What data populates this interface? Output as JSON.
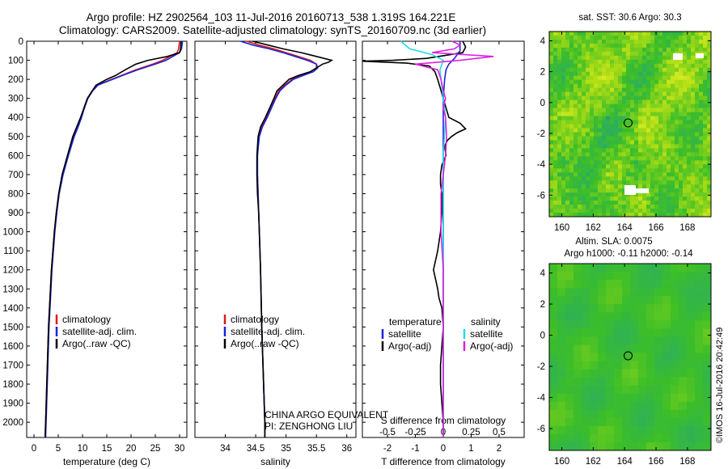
{
  "title": {
    "line1": "Argo profile: HZ 2902564_103 11-Jul-2016 20160713_538 1.319S 164.221E",
    "line2": "Climatology: CARS2009. Satellite-adjusted climatology: synTS_20160709.nc (3d earlier)"
  },
  "depth_ticks": [
    "0",
    "100",
    "200",
    "300",
    "400",
    "500",
    "600",
    "700",
    "800",
    "900",
    "1000",
    "1100",
    "1200",
    "1300",
    "1400",
    "1500",
    "1600",
    "1700",
    "1800",
    "1900",
    "2000"
  ],
  "colors": {
    "climatology": "#e01818",
    "satellite": "#1a24d8",
    "argo": "#000000",
    "salinity_sat": "#22dde8",
    "salinity_argo": "#e020e0"
  },
  "chart_data": [
    {
      "type": "line",
      "id": "temperature",
      "xlabel": "temperature (deg C)",
      "ylabel": "depth",
      "xlim": [
        -1.5,
        31.5
      ],
      "ylim": [
        0,
        2080
      ],
      "xticks": [
        "0",
        "5",
        "10",
        "15",
        "20",
        "25",
        "30"
      ],
      "legend": {
        "position": "lower-left",
        "items": [
          "climatology",
          "satellite-adj. clim.",
          "Argo(..raw -QC)"
        ]
      },
      "series": [
        {
          "name": "climatology",
          "color": "#e01818",
          "depth": [
            0,
            40,
            60,
            80,
            100,
            120,
            150,
            180,
            200,
            230,
            260,
            300,
            350,
            400,
            450,
            500,
            600,
            700,
            800,
            900,
            1000,
            1200,
            1500,
            2000,
            2080
          ],
          "values": [
            30.0,
            29.8,
            29.5,
            28.0,
            26.5,
            24.5,
            21.0,
            18.0,
            16.0,
            13.0,
            12.0,
            11.0,
            10.3,
            9.7,
            9.0,
            8.2,
            7.0,
            5.9,
            5.1,
            4.6,
            4.2,
            3.6,
            3.0,
            2.4,
            2.3
          ]
        },
        {
          "name": "satellite-adj. clim.",
          "color": "#1a24d8",
          "depth": [
            0,
            40,
            60,
            80,
            100,
            120,
            150,
            180,
            200,
            230,
            260,
            300,
            350,
            400,
            450,
            500,
            600,
            700,
            800,
            900,
            1000,
            1200,
            1500,
            2000,
            2080
          ],
          "values": [
            30.6,
            30.4,
            30.0,
            28.6,
            27.2,
            25.0,
            21.4,
            18.2,
            16.2,
            13.2,
            12.1,
            11.1,
            10.4,
            9.8,
            9.1,
            8.3,
            7.1,
            6.0,
            5.2,
            4.7,
            4.3,
            3.7,
            3.1,
            2.5,
            2.4
          ]
        },
        {
          "name": "Argo(..raw -QC)",
          "color": "#000000",
          "depth": [
            0,
            40,
            60,
            80,
            100,
            120,
            150,
            180,
            200,
            230,
            260,
            300,
            350,
            400,
            450,
            500,
            600,
            700,
            800,
            900,
            1000,
            1200,
            1500,
            2000,
            2080
          ],
          "values": [
            30.3,
            30.2,
            30.0,
            27.5,
            23.5,
            21.0,
            18.8,
            16.8,
            15.0,
            12.8,
            12.0,
            11.0,
            10.3,
            9.6,
            8.8,
            8.0,
            6.9,
            5.8,
            5.1,
            4.6,
            4.2,
            3.6,
            3.0,
            2.4,
            2.3
          ]
        }
      ]
    },
    {
      "type": "line",
      "id": "salinity",
      "xlabel": "salinity",
      "ylabel": "depth",
      "xlim": [
        33.5,
        36.15
      ],
      "ylim": [
        0,
        2080
      ],
      "xticks": [
        "34",
        "34.5",
        "35",
        "35.5",
        "36"
      ],
      "legend": {
        "position": "lower-left",
        "items": [
          "climatology",
          "satellite-adj. clim.",
          "Argo(..raw -QC)"
        ]
      },
      "annotations": [
        "CHINA ARGO EQUIVALENT",
        "PI: ZENGHONG LIU"
      ],
      "series": [
        {
          "name": "climatology",
          "color": "#e01818",
          "depth": [
            0,
            20,
            40,
            60,
            80,
            100,
            120,
            140,
            160,
            180,
            200,
            230,
            260,
            300,
            350,
            400,
            450,
            500,
            600,
            700,
            800,
            900,
            1000,
            1200,
            1500,
            2000,
            2080
          ],
          "values": [
            34.35,
            34.55,
            34.8,
            35.0,
            35.2,
            35.4,
            35.5,
            35.5,
            35.4,
            35.25,
            35.1,
            34.98,
            34.88,
            34.82,
            34.75,
            34.68,
            34.6,
            34.55,
            34.53,
            34.53,
            34.54,
            34.55,
            34.56,
            34.58,
            34.6,
            34.65,
            34.65
          ]
        },
        {
          "name": "satellite-adj. clim.",
          "color": "#1a24d8",
          "depth": [
            0,
            20,
            40,
            60,
            80,
            100,
            120,
            140,
            160,
            180,
            200,
            230,
            260,
            300,
            350,
            400,
            450,
            500,
            600,
            700,
            800,
            900,
            1000,
            1200,
            1500,
            2000,
            2080
          ],
          "values": [
            34.25,
            34.45,
            34.72,
            34.95,
            35.15,
            35.35,
            35.5,
            35.52,
            35.45,
            35.28,
            35.12,
            35.0,
            34.9,
            34.83,
            34.76,
            34.69,
            34.61,
            34.56,
            34.53,
            34.53,
            34.54,
            34.55,
            34.56,
            34.58,
            34.6,
            34.65,
            34.65
          ]
        },
        {
          "name": "Argo(..raw -QC)",
          "color": "#000000",
          "depth": [
            0,
            20,
            40,
            60,
            80,
            100,
            110,
            120,
            140,
            160,
            180,
            200,
            230,
            260,
            300,
            350,
            400,
            450,
            500,
            600,
            700,
            800,
            900,
            1000,
            1200,
            1500,
            2000,
            2080
          ],
          "values": [
            34.45,
            34.7,
            34.95,
            35.25,
            35.5,
            35.75,
            35.7,
            35.6,
            35.5,
            35.4,
            35.2,
            35.05,
            34.95,
            34.85,
            34.8,
            34.73,
            34.66,
            34.58,
            34.54,
            34.52,
            34.52,
            34.53,
            34.55,
            34.56,
            34.58,
            34.6,
            34.65,
            34.65
          ]
        }
      ]
    },
    {
      "type": "line",
      "id": "difference",
      "xlabel_bottom": "T difference from climatology",
      "xlabel_top": "S difference from climatology",
      "ylabel": "depth",
      "t_xlim": [
        -2.9,
        2.9
      ],
      "s_xlim": [
        -0.725,
        0.725
      ],
      "t_ticks": [
        "-2",
        "-1",
        "0",
        "1",
        "2"
      ],
      "s_ticks": [
        "-0.5",
        "-0.25",
        "0",
        "0.25",
        "0.5"
      ],
      "ylim": [
        0,
        2080
      ],
      "legend": {
        "position": "lower-center",
        "headers": [
          "temperature",
          "salinity"
        ],
        "items": [
          "satellite",
          "Argo(-adj)",
          "satellite",
          "Argo(-adj)"
        ]
      },
      "series": [
        {
          "name": "temperature satellite",
          "color": "#1a24d8",
          "axis": "t",
          "depth": [
            0,
            50,
            90,
            120,
            150,
            200,
            300,
            400,
            500,
            700,
            1000,
            1500,
            2000,
            2080
          ],
          "values": [
            0.6,
            0.6,
            0.4,
            0.2,
            0.1,
            0.05,
            0.0,
            0.0,
            0.0,
            0.0,
            0.0,
            0.0,
            0.0,
            0.0
          ]
        },
        {
          "name": "temperature Argo(-adj)",
          "color": "#000000",
          "axis": "t",
          "depth": [
            0,
            30,
            60,
            90,
            100,
            105,
            115,
            130,
            160,
            200,
            250,
            300,
            350,
            400,
            430,
            460,
            480,
            500,
            520,
            550,
            600,
            650,
            700,
            750,
            800,
            900,
            1000,
            1100,
            1200,
            1300,
            1350,
            1400,
            1500,
            1600,
            1700,
            1800,
            1900,
            2000,
            2080
          ],
          "values": [
            0.7,
            0.8,
            0.7,
            -0.6,
            -1.8,
            -2.9,
            -1.3,
            -0.5,
            -0.3,
            -0.2,
            -0.1,
            0.0,
            0.1,
            0.2,
            0.6,
            0.8,
            0.5,
            0.3,
            0.15,
            0.05,
            0.1,
            -0.05,
            -0.1,
            -0.1,
            -0.05,
            -0.05,
            -0.1,
            -0.2,
            -0.35,
            -0.2,
            -0.15,
            -0.05,
            0.0,
            -0.05,
            -0.1,
            -0.1,
            -0.05,
            0.0,
            0.0
          ]
        },
        {
          "name": "salinity satellite",
          "color": "#22dde8",
          "axis": "s",
          "depth": [
            0,
            40,
            70,
            100,
            150,
            200,
            300,
            400,
            600,
            1000,
            1500,
            2000,
            2080
          ],
          "values": [
            -0.38,
            -0.3,
            -0.1,
            0.0,
            -0.03,
            -0.02,
            0.0,
            0.02,
            0.0,
            0.0,
            0.0,
            0.0,
            0.0
          ]
        },
        {
          "name": "salinity Argo(-adj)",
          "color": "#e020e0",
          "axis": "s",
          "depth": [
            0,
            20,
            40,
            60,
            80,
            100,
            120,
            150,
            200,
            260,
            300,
            350,
            400,
            500,
            600,
            700,
            800,
            900,
            1000,
            1200,
            1500,
            2000,
            2080
          ],
          "values": [
            0.08,
            0.15,
            0.1,
            -0.1,
            0.45,
            0.15,
            -0.25,
            -0.05,
            -0.02,
            0.0,
            0.02,
            0.0,
            0.02,
            0.03,
            0.02,
            0.0,
            -0.02,
            -0.02,
            -0.02,
            0.0,
            0.0,
            0.0,
            0.0
          ]
        }
      ]
    },
    {
      "type": "heatmap",
      "id": "sst_map",
      "title": "sat. SST: 30.6 Argo: 30.3",
      "xlim": [
        159.2,
        169.5
      ],
      "ylim": [
        -7.4,
        4.6
      ],
      "xticks": [
        "160",
        "162",
        "164",
        "166",
        "168"
      ],
      "yticks": [
        "4",
        "2",
        "0",
        "-2",
        "-4",
        "-6"
      ],
      "float_position": {
        "lon": 164.221,
        "lat": -1.319
      },
      "grid_cols": 40,
      "grid_rows": 46,
      "seed": 7
    },
    {
      "type": "heatmap",
      "id": "sla_map",
      "title_line1": "Altim. SLA: 0.0075",
      "title_line2": "Argo h1000: -0.11 h2000: -0.14",
      "xlim": [
        159.2,
        169.5
      ],
      "ylim": [
        -7.4,
        4.6
      ],
      "xticks": [
        "160",
        "162",
        "164",
        "166",
        "168"
      ],
      "yticks": [
        "4",
        "2",
        "0",
        "-2",
        "-4",
        "-6"
      ],
      "float_position": {
        "lon": 164.221,
        "lat": -1.319
      },
      "grid_cols": 20,
      "grid_rows": 23,
      "seed": 11
    }
  ],
  "side_credit": "©IMOS 16-Jul-2016 20:42:49"
}
